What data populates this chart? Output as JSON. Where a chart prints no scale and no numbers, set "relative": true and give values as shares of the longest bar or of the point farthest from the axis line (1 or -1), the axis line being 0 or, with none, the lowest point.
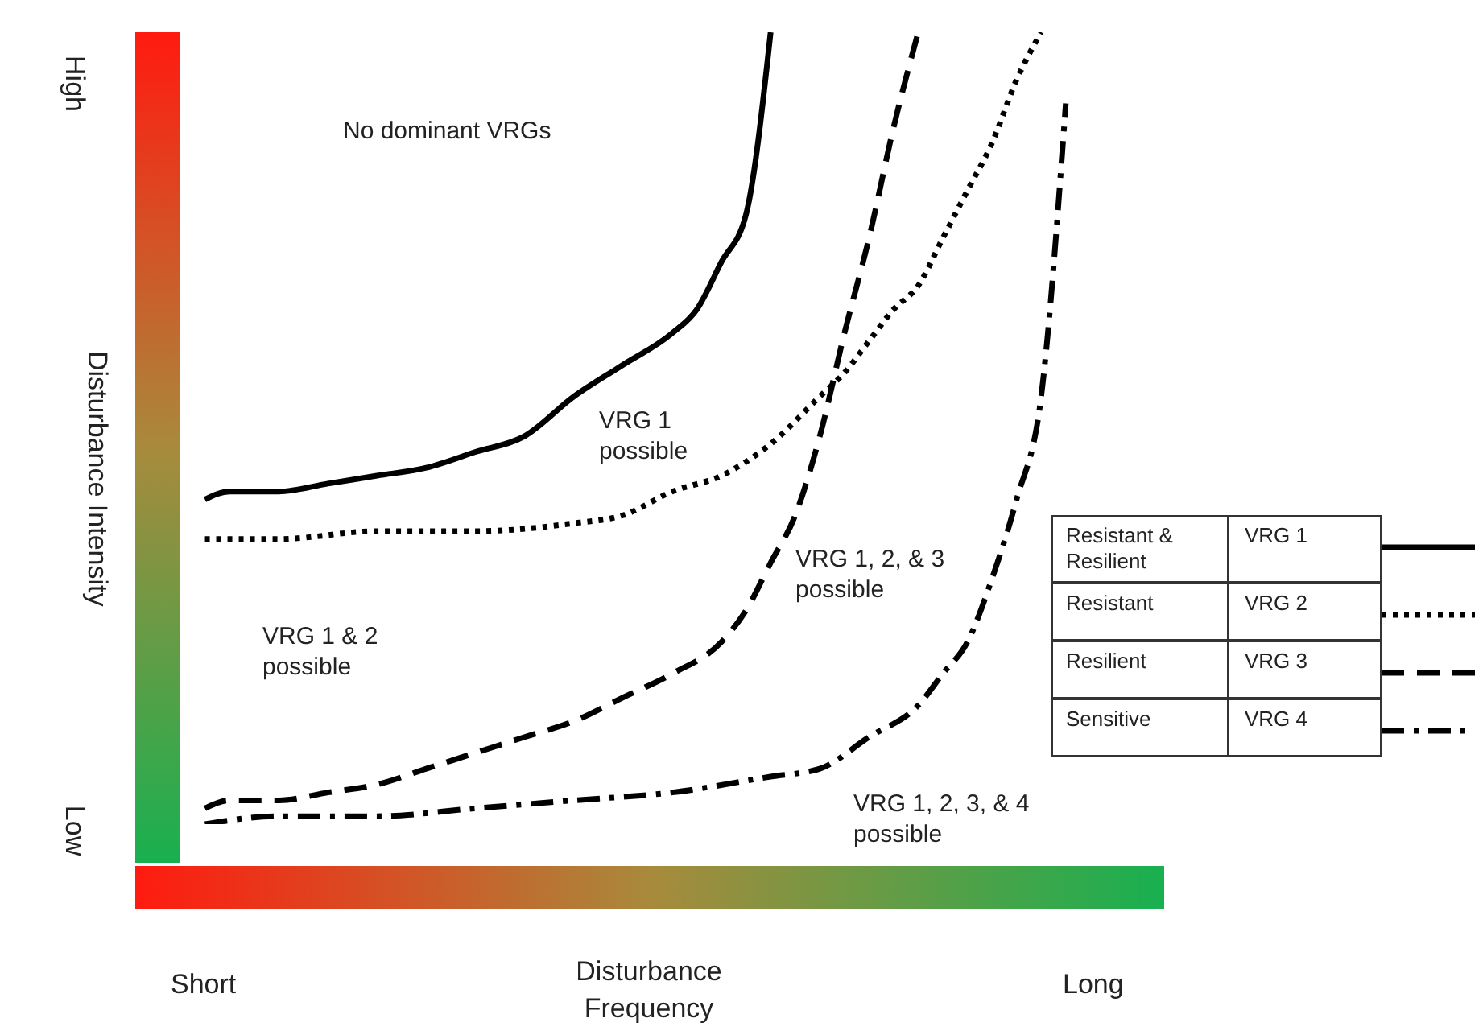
{
  "chart_data": {
    "type": "line",
    "relative": true,
    "xlabel": "Disturbance Frequency",
    "ylabel": "Disturbance Intensity",
    "legend": "right",
    "marker": "none",
    "grid": false,
    "categories": [
      null,
      null,
      null,
      null,
      null,
      null,
      null,
      null,
      null,
      null,
      null,
      null,
      null,
      null,
      null,
      null,
      null,
      null,
      null,
      null,
      null,
      null,
      null,
      null,
      null,
      null,
      null,
      null,
      null,
      null,
      null,
      null,
      null,
      null,
      null,
      null,
      null,
      null,
      null,
      null,
      null
    ],
    "series": [
      {
        "name": "VRG 1",
        "color": "#000000",
        "line_style": "solid",
        "values": [
          null,
          0.41,
          0.42,
          null,
          0.42,
          null,
          0.43,
          null,
          0.44,
          null,
          0.45,
          null,
          0.47,
          null,
          0.49,
          null,
          0.54,
          null,
          0.58,
          null,
          0.62,
          0.65,
          0.71,
          0.77,
          1,
          null,
          null,
          null,
          null,
          null,
          null,
          null,
          null,
          null,
          null,
          null,
          null,
          null,
          null,
          null,
          null
        ]
      },
      {
        "name": "VRG 2",
        "color": "#000000",
        "line_style": "dotted",
        "values": [
          null,
          0.36,
          null,
          null,
          0.36,
          null,
          null,
          null,
          0.37,
          null,
          null,
          null,
          0.37,
          null,
          null,
          null,
          0.38,
          null,
          0.39,
          null,
          0.42,
          null,
          0.44,
          null,
          0.48,
          null,
          0.54,
          0.57,
          0.61,
          0.65,
          0.68,
          0.74,
          0.8,
          0.86,
          0.94,
          1,
          null,
          null,
          null,
          null,
          null
        ]
      },
      {
        "name": "VRG 3",
        "color": "#000000",
        "line_style": "dashed",
        "values": [
          null,
          0.02,
          0.03,
          null,
          0.03,
          null,
          0.04,
          null,
          0.05,
          null,
          0.07,
          null,
          0.09,
          null,
          0.11,
          null,
          0.13,
          null,
          0.16,
          null,
          0.19,
          null,
          0.23,
          0.27,
          0.33,
          0.39,
          0.49,
          0.62,
          0.74,
          0.88,
          1,
          null,
          null,
          null,
          null,
          null,
          null,
          null,
          null,
          null,
          null
        ]
      },
      {
        "name": "VRG 4",
        "color": "#000000",
        "line_style": "dashdot",
        "values": [
          null,
          0,
          null,
          null,
          0.01,
          null,
          null,
          null,
          0.01,
          null,
          null,
          null,
          0.02,
          null,
          null,
          null,
          0.03,
          null,
          null,
          null,
          0.04,
          null,
          null,
          null,
          0.06,
          null,
          0.07,
          null,
          0.11,
          null,
          0.15,
          0.19,
          0.23,
          0.31,
          0.41,
          0.54,
          0.91,
          null,
          null,
          null,
          null
        ]
      }
    ],
    "annotations": [
      "No dominant VRGs",
      "VRG 1 possible",
      "VRG 1 & 2 possible",
      "VRG 1, 2, & 3 possible",
      "VRG 1, 2, 3, & 4 possible",
      "High",
      "Low",
      "Short",
      "Long",
      "Resistant & Resilient",
      "Resistant",
      "Resilient",
      "Sensitive"
    ]
  }
}
